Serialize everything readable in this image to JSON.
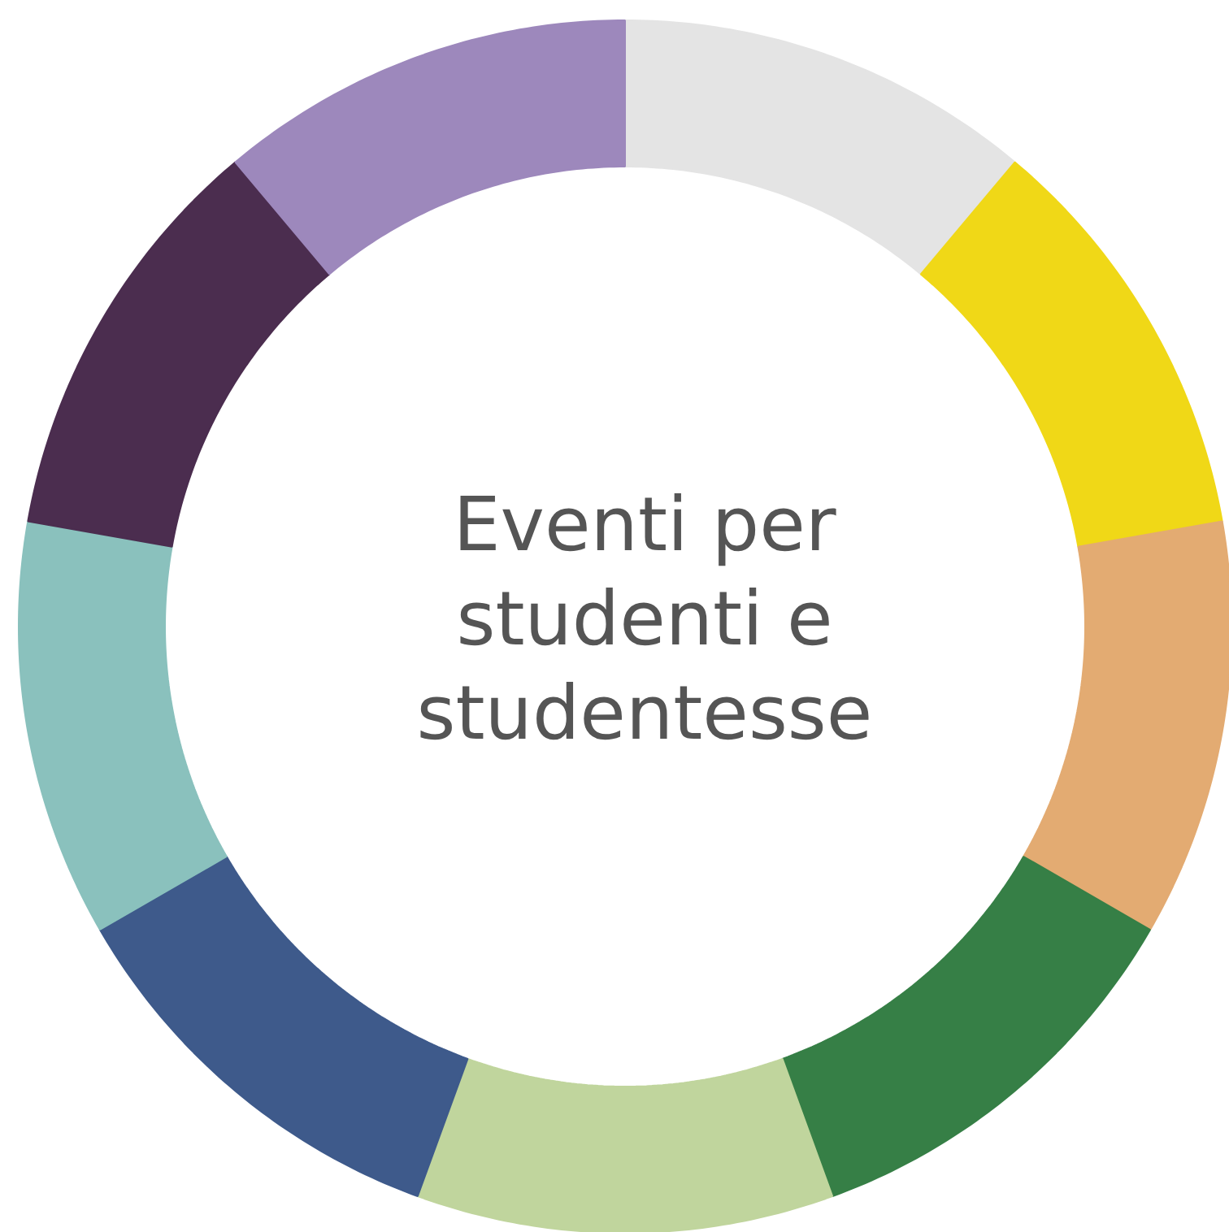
{
  "chart_data": {
    "type": "donut",
    "title": "Eventi per studenti e studentesse",
    "categories": [
      null,
      null,
      null,
      null,
      null,
      null,
      null,
      null,
      null
    ],
    "values": [
      11.11,
      11.11,
      11.11,
      11.11,
      11.11,
      11.11,
      11.11,
      11.11,
      11.11
    ],
    "colors": [
      "#e4e4e4",
      "#f0d817",
      "#e3ab72",
      "#367f46",
      "#c0d59d",
      "#3e5a8b",
      "#8ac1bd",
      "#4b2d4f",
      "#9d88bc"
    ]
  }
}
